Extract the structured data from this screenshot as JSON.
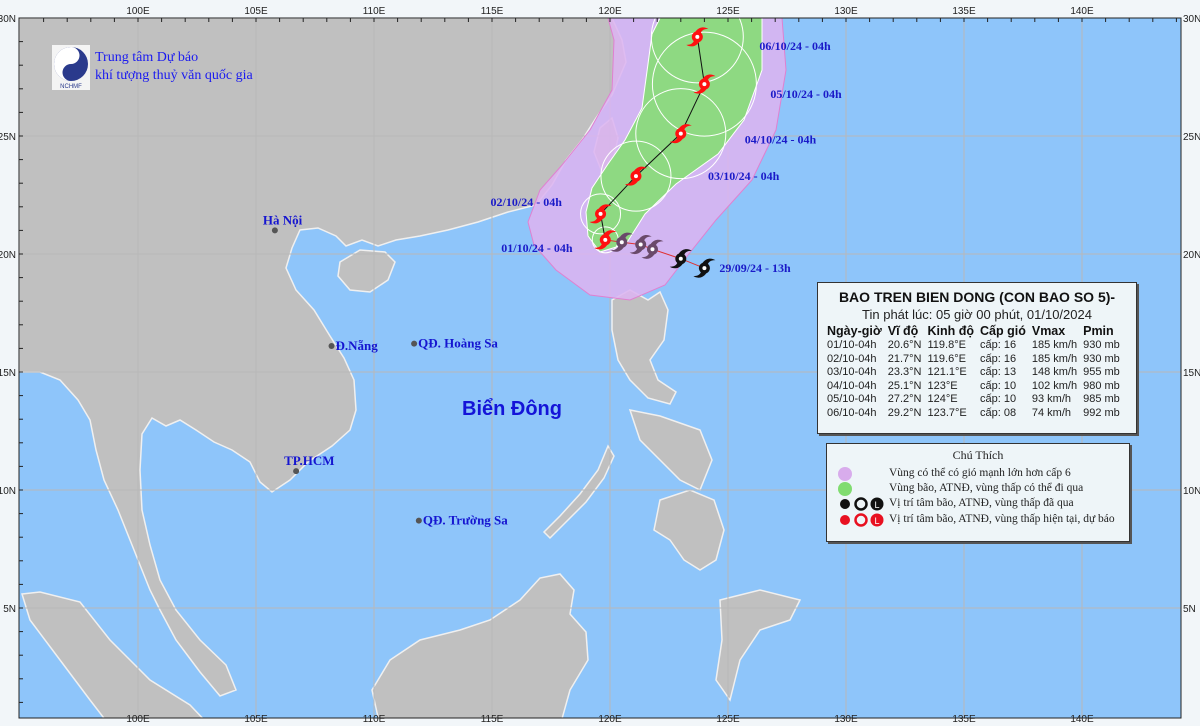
{
  "header": {
    "logo_caption": "NCHMF",
    "org_line1": "Trung tâm Dự báo",
    "org_line2": "khí tượng thuỷ văn quốc gia"
  },
  "map": {
    "lon_labels": [
      "100E",
      "105E",
      "110E",
      "115E",
      "120E",
      "125E",
      "130E",
      "135E",
      "140E"
    ],
    "lat_labels": [
      "30N",
      "25N",
      "20N",
      "15N",
      "10N",
      "5N"
    ],
    "sea_label": "Biển Đông",
    "places": [
      {
        "name": "Hà Nội",
        "lat": 21.0,
        "lon": 105.8
      },
      {
        "name": "Đ.Nẵng",
        "lat": 16.1,
        "lon": 108.2
      },
      {
        "name": "QĐ. Hoàng Sa",
        "lat": 16.2,
        "lon": 111.7
      },
      {
        "name": "TP.HCM",
        "lat": 10.8,
        "lon": 106.7
      },
      {
        "name": "QĐ. Trường Sa",
        "lat": 8.7,
        "lon": 111.9
      }
    ],
    "colors": {
      "sea": "#8ec5fa",
      "land": "#c0c0c0",
      "strong_wind_zone": "#dcb4f0",
      "storm_zone": "#88dc78",
      "forecast": "#ff1010",
      "past": "#111111"
    }
  },
  "storm": {
    "past_track": [
      {
        "label": "29/09/24 - 13h",
        "lat": 19.4,
        "lon": 124.0
      },
      {
        "label": "",
        "lat": 19.8,
        "lon": 123.0
      },
      {
        "label": "",
        "lat": 20.2,
        "lon": 121.8
      },
      {
        "label": "",
        "lat": 20.4,
        "lon": 121.3
      },
      {
        "label": "",
        "lat": 20.5,
        "lon": 120.5
      }
    ],
    "forecast_track": [
      {
        "label": "01/10/24 - 04h",
        "lat": 20.6,
        "lon": 119.8
      },
      {
        "label": "02/10/24 - 04h",
        "lat": 21.7,
        "lon": 119.6
      },
      {
        "label": "03/10/24 - 04h",
        "lat": 23.3,
        "lon": 121.1
      },
      {
        "label": "04/10/24 - 04h",
        "lat": 25.1,
        "lon": 123.0
      },
      {
        "label": "05/10/24 - 04h",
        "lat": 27.2,
        "lon": 124.0
      },
      {
        "label": "06/10/24 - 04h",
        "lat": 29.2,
        "lon": 123.7
      }
    ]
  },
  "info": {
    "title": "BAO TREN BIEN DONG (CON BAO SO 5)-",
    "issued": "Tin phát lúc: 05 giờ 00 phút, 01/10/2024",
    "columns": [
      "Ngày-giờ",
      "Vĩ độ",
      "Kinh độ",
      "Cấp gió",
      "Vmax",
      "Pmin"
    ],
    "rows": [
      [
        "01/10-04h",
        "20.6°N",
        "119.8°E",
        "cấp: 16",
        "185 km/h",
        "930 mb"
      ],
      [
        "02/10-04h",
        "21.7°N",
        "119.6°E",
        "cấp: 16",
        "185 km/h",
        "930 mb"
      ],
      [
        "03/10-04h",
        "23.3°N",
        "121.1°E",
        "cấp: 13",
        "148 km/h",
        "955 mb"
      ],
      [
        "04/10-04h",
        "25.1°N",
        "123°E",
        "cấp: 10",
        "102 km/h",
        "980 mb"
      ],
      [
        "05/10-04h",
        "27.2°N",
        "124°E",
        "cấp: 10",
        "93 km/h",
        "985 mb"
      ],
      [
        "06/10-04h",
        "29.2°N",
        "123.7°E",
        "cấp: 08",
        "74 km/h",
        "992 mb"
      ]
    ]
  },
  "legend": {
    "title": "Chú Thích",
    "items": [
      {
        "icon": "purple-circle-icon",
        "text": "Vùng có thể có gió mạnh lớn hơn cấp 6"
      },
      {
        "icon": "green-circle-icon",
        "text": "Vùng bão, ATNĐ, vùng thấp có thể đi qua"
      },
      {
        "icon": "black-storm-symbols-icon",
        "text": "Vị trí tâm bão, ATNĐ, vùng thấp đã qua"
      },
      {
        "icon": "red-storm-symbols-icon",
        "text": "Vị trí tâm bão, ATNĐ, vùng thấp hiện tại, dự báo"
      }
    ]
  }
}
